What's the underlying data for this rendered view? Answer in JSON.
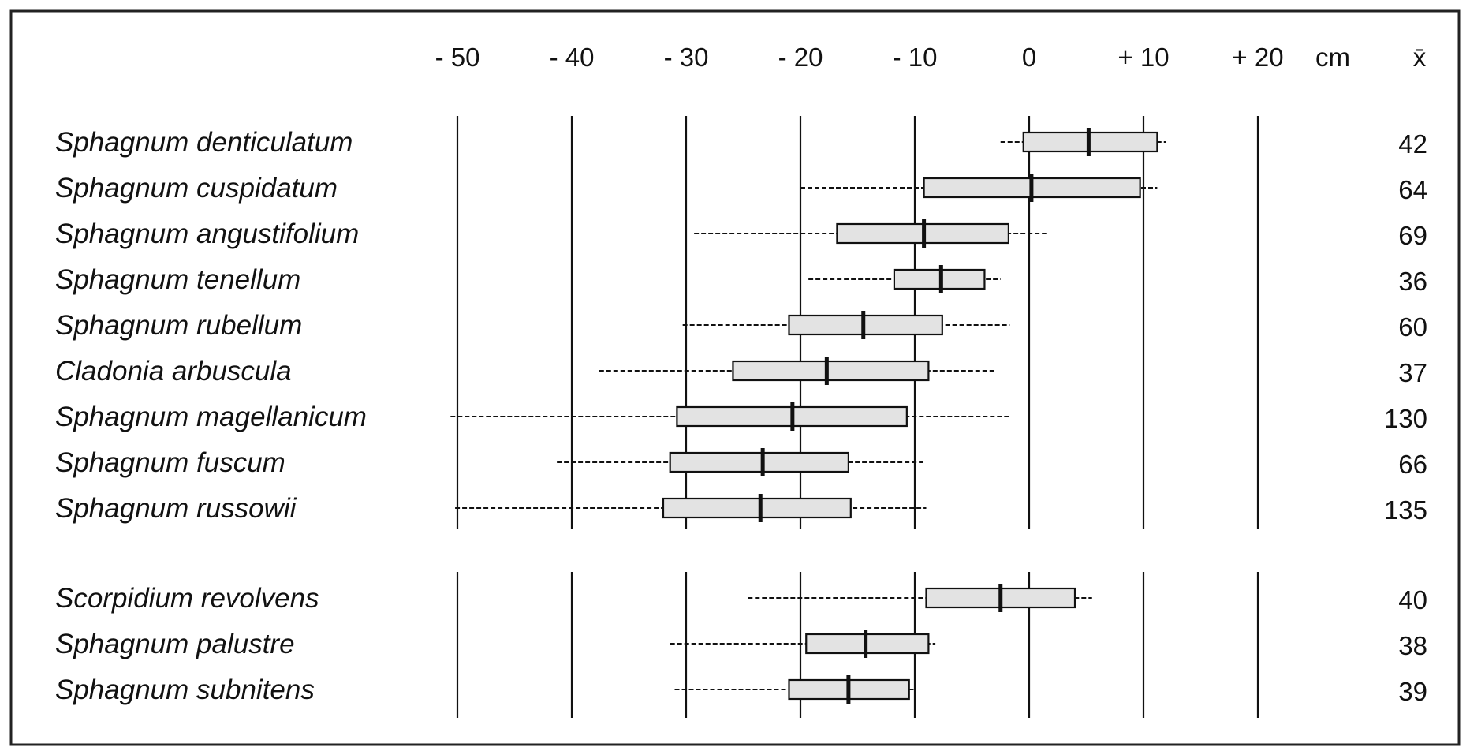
{
  "chart_data": {
    "type": "box",
    "axis": {
      "ticks": [
        -50,
        -40,
        -30,
        -20,
        -10,
        0,
        10,
        20
      ],
      "tick_labels": [
        "- 50",
        "- 40",
        "- 30",
        "- 20",
        "- 10",
        "0",
        "+ 10",
        "+ 20"
      ],
      "unit": "cm",
      "xlim": [
        -50,
        20
      ]
    },
    "n_header": "x̄",
    "groups": [
      {
        "rows": [
          {
            "species": "Sphagnum denticulatum",
            "whisker_min": -2.5,
            "q1": -0.5,
            "median": 5.2,
            "q3": 11.2,
            "whisker_max": 12,
            "n": "42"
          },
          {
            "species": "Sphagnum cuspidatum",
            "whisker_min": -20,
            "q1": -9.2,
            "median": 0.2,
            "q3": 9.7,
            "whisker_max": 11.2,
            "n": "64"
          },
          {
            "species": "Sphagnum angustifolium",
            "whisker_min": -29.3,
            "q1": -16.8,
            "median": -9.2,
            "q3": -1.8,
            "whisker_max": 1.5,
            "n": "69"
          },
          {
            "species": "Sphagnum tenellum",
            "whisker_min": -19.3,
            "q1": -11.8,
            "median": -7.7,
            "q3": -3.9,
            "whisker_max": -2.5,
            "n": "36"
          },
          {
            "species": "Sphagnum rubellum",
            "whisker_min": -30.3,
            "q1": -21,
            "median": -14.5,
            "q3": -7.6,
            "whisker_max": -1.7,
            "n": "60"
          },
          {
            "species": "Cladonia arbuscula",
            "whisker_min": -37.6,
            "q1": -25.9,
            "median": -17.7,
            "q3": -8.8,
            "whisker_max": -3.1,
            "n": "37"
          },
          {
            "species": "Sphagnum magellanicum",
            "whisker_min": -50.6,
            "q1": -30.8,
            "median": -20.7,
            "q3": -10.7,
            "whisker_max": -1.6,
            "n": "130"
          },
          {
            "species": "Sphagnum fuscum",
            "whisker_min": -41.3,
            "q1": -31.4,
            "median": -23.3,
            "q3": -15.8,
            "whisker_max": -9.3,
            "n": "66"
          },
          {
            "species": "Sphagnum russowii",
            "whisker_min": -50.2,
            "q1": -32,
            "median": -23.5,
            "q3": -15.6,
            "whisker_max": -9,
            "n": "135"
          }
        ]
      },
      {
        "rows": [
          {
            "species": "Scorpidium revolvens",
            "whisker_min": -24.6,
            "q1": -9,
            "median": -2.5,
            "q3": 4,
            "whisker_max": 5.5,
            "n": "40"
          },
          {
            "species": "Sphagnum palustre",
            "whisker_min": -31.4,
            "q1": -19.5,
            "median": -14.3,
            "q3": -8.8,
            "whisker_max": -8.2,
            "n": "38"
          },
          {
            "species": "Sphagnum subnitens",
            "whisker_min": -31,
            "q1": -21,
            "median": -15.8,
            "q3": -10.5,
            "whisker_max": -10,
            "n": "39"
          }
        ]
      }
    ],
    "box_fill": "#e3e3e3",
    "line_color": "#111111",
    "frame_color": "#222222"
  }
}
